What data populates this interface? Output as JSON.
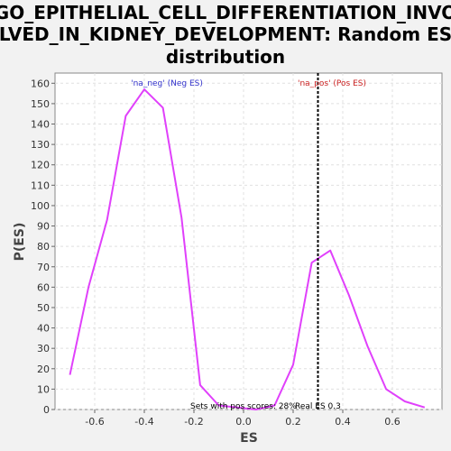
{
  "chart_data": {
    "type": "line",
    "title_lines": [
      "GO_EPITHELIAL_CELL_DIFFERENTIATION_INVO",
      "LVED_IN_KIDNEY_DEVELOPMENT: Random ES",
      "distribution"
    ],
    "xlabel": "ES",
    "ylabel": "P(ES)",
    "xlim": [
      -0.76,
      0.8
    ],
    "ylim": [
      0,
      165
    ],
    "xticks": [
      -0.6,
      -0.4,
      -0.2,
      0.0,
      0.2,
      0.4,
      0.6
    ],
    "xtick_labels": [
      "-0.6",
      "-0.4",
      "-0.2",
      "0.0",
      "0.2",
      "0.4",
      "0.6"
    ],
    "yticks": [
      0,
      10,
      20,
      30,
      40,
      50,
      60,
      70,
      80,
      90,
      100,
      110,
      120,
      130,
      140,
      150,
      160
    ],
    "grid": true,
    "series": [
      {
        "color": "#e040fb",
        "x": [
          -0.7,
          -0.625,
          -0.55,
          -0.475,
          -0.4,
          -0.325,
          -0.25,
          -0.175,
          -0.1,
          0.05,
          0.125,
          0.2,
          0.275,
          0.35,
          0.425,
          0.5,
          0.575,
          0.65,
          0.73
        ],
        "y": [
          17,
          60,
          93,
          144,
          157,
          148,
          94,
          12,
          2,
          0,
          2,
          22,
          72,
          78,
          56,
          31,
          10,
          4,
          1
        ]
      }
    ],
    "vline": {
      "x": 0.3,
      "label": "Real ES 0.3",
      "color": "#000000"
    },
    "annotations": {
      "neg_label": "'na_neg' (Neg ES)",
      "neg_color": "#3333cc",
      "pos_label": "'na_pos' (Pos ES)",
      "pos_color": "#cc2222",
      "pos_scores_text": "Sets with pos scores: 28%"
    }
  }
}
